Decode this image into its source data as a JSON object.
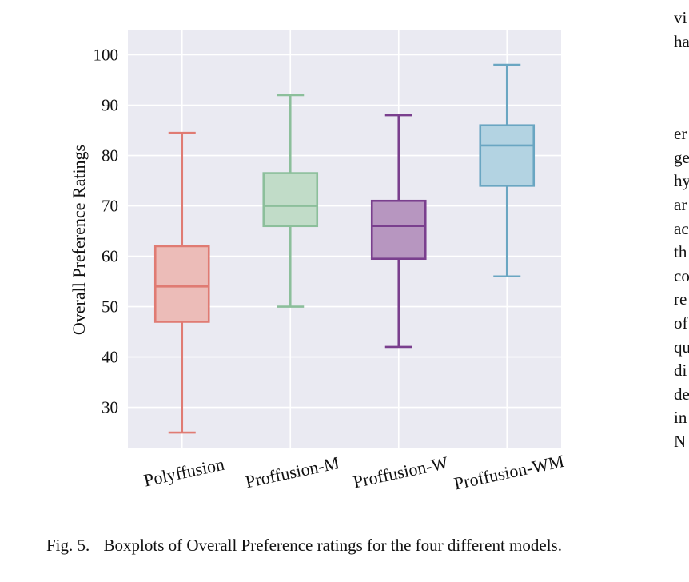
{
  "chart_data": {
    "type": "boxplot",
    "ylabel": "Overall Preference Ratings",
    "ylim": [
      22,
      105
    ],
    "yticks": [
      30,
      40,
      50,
      60,
      70,
      80,
      90,
      100
    ],
    "grid": true,
    "categories": [
      "Polyffusion",
      "Proffusion-M",
      "Proffusion-W",
      "Proffusion-WM"
    ],
    "boxes": [
      {
        "name": "Polyffusion",
        "whisker_low": 25,
        "q1": 47,
        "median": 54,
        "q3": 62,
        "whisker_high": 84.5,
        "color": "#e07b73",
        "fill": "#ecbcb8"
      },
      {
        "name": "Proffusion-M",
        "whisker_low": 50,
        "q1": 66,
        "median": 70,
        "q3": 76.5,
        "whisker_high": 92,
        "color": "#8cbf9b",
        "fill": "#c1dcc8"
      },
      {
        "name": "Proffusion-W",
        "whisker_low": 42,
        "q1": 59.5,
        "median": 66,
        "q3": 71,
        "whisker_high": 88,
        "color": "#7a3f8e",
        "fill": "#b796c0"
      },
      {
        "name": "Proffusion-WM",
        "whisker_low": 56,
        "q1": 74,
        "median": 82,
        "q3": 86,
        "whisker_high": 98,
        "color": "#6aa6c2",
        "fill": "#b3d3e2"
      }
    ],
    "plot_background": "#eaeaf2"
  },
  "caption": {
    "label": "Fig. 5.",
    "text": "Boxplots of Overall Preference ratings for the four different models."
  },
  "side_text": {
    "top": [
      "vi",
      "ha"
    ],
    "bottom": [
      "er",
      "ge",
      "hy",
      "ar",
      "ac",
      "th",
      "co",
      "re",
      "of",
      "qu",
      "di",
      "de",
      "in",
      "N"
    ]
  }
}
